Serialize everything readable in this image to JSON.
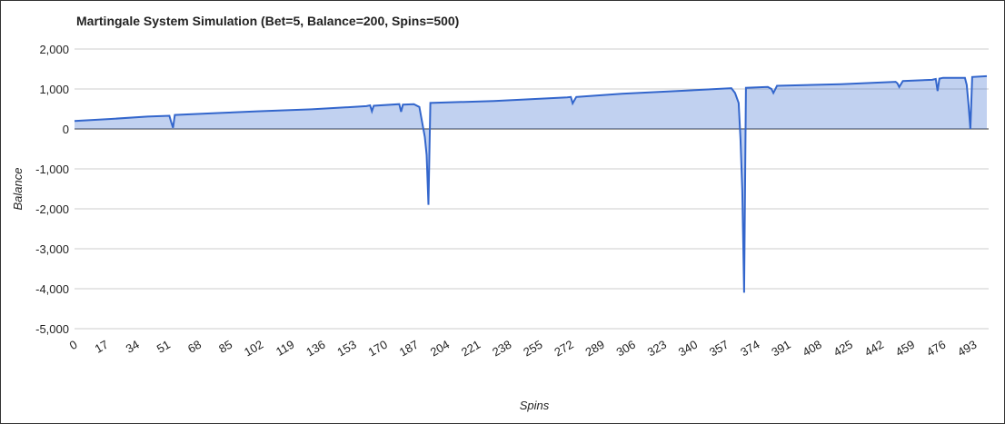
{
  "chart_data": {
    "type": "area",
    "title": "Martingale System Simulation (Bet=5, Balance=200, Spins=500)",
    "x_label": "Spins",
    "y_label": "Balance",
    "x": [
      0,
      20,
      40,
      52,
      53,
      54,
      55,
      80,
      100,
      130,
      160,
      162,
      163,
      164,
      178,
      179,
      180,
      186,
      189,
      190,
      192,
      193,
      194,
      195,
      230,
      270,
      272,
      273,
      275,
      300,
      340,
      360,
      362,
      364,
      365,
      366,
      367,
      368,
      380,
      382,
      383,
      385,
      420,
      450,
      451,
      452,
      454,
      470,
      472,
      473,
      474,
      476,
      488,
      489,
      490,
      491,
      492,
      500
    ],
    "series": [
      {
        "name": "Balance",
        "color": "#3366cc",
        "values": [
          200,
          250,
          310,
          330,
          170,
          30,
          350,
          400,
          440,
          490,
          570,
          590,
          440,
          580,
          620,
          430,
          610,
          620,
          550,
          300,
          -200,
          -650,
          -1900,
          650,
          700,
          790,
          800,
          640,
          800,
          880,
          970,
          1020,
          900,
          650,
          -250,
          -1550,
          -4100,
          1030,
          1050,
          1000,
          900,
          1080,
          1120,
          1180,
          1140,
          1050,
          1200,
          1230,
          1250,
          950,
          1260,
          1280,
          1280,
          1100,
          600,
          0,
          1300,
          1320
        ]
      }
    ],
    "xlim": [
      0,
      501
    ],
    "xticks": [
      0,
      17,
      34,
      51,
      68,
      85,
      102,
      119,
      136,
      153,
      170,
      187,
      204,
      221,
      238,
      255,
      272,
      289,
      306,
      323,
      340,
      357,
      374,
      391,
      408,
      425,
      442,
      459,
      476,
      493
    ],
    "ylim": [
      -5000,
      2000
    ],
    "yticks": [
      {
        "value": 2000,
        "label": "2,000"
      },
      {
        "value": 1000,
        "label": "1,000"
      },
      0,
      {
        "value": -1000,
        "label": "-1,000"
      },
      {
        "value": -2000,
        "label": "-2,000"
      },
      {
        "value": -3000,
        "label": "-3,000"
      },
      {
        "value": -4000,
        "label": "-4,000"
      },
      {
        "value": -5000,
        "label": "-5,000"
      }
    ],
    "grid": true
  }
}
